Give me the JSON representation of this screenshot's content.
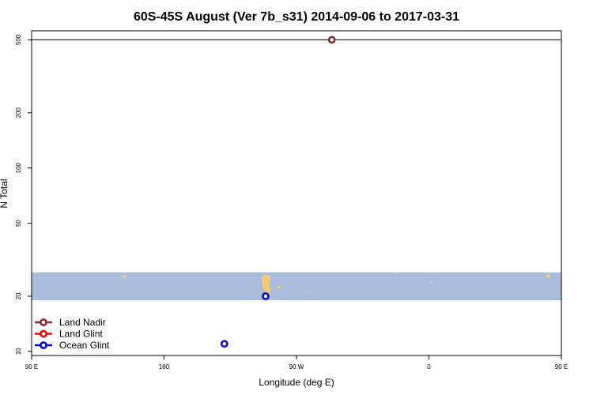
{
  "chart_data": {
    "type": "scatter",
    "title": "60S-45S August (Ver 7b_s31)   2014-09-06 to 2017-03-31",
    "xlabel": "Longitude (deg E)",
    "ylabel": "N Total",
    "y_scale": "log",
    "xlim": [
      90,
      450
    ],
    "ylim": [
      9.5,
      560
    ],
    "x_ticks": [
      {
        "value": 90,
        "label": "90 E"
      },
      {
        "value": 180,
        "label": "180"
      },
      {
        "value": 270,
        "label": "90 W"
      },
      {
        "value": 360,
        "label": "0"
      },
      {
        "value": 450,
        "label": "90 E"
      },
      {
        "value": 540,
        "label": "180"
      }
    ],
    "y_ticks": [
      {
        "value": 10,
        "label": "10"
      },
      {
        "value": 20,
        "label": "20"
      },
      {
        "value": 50,
        "label": "50"
      },
      {
        "value": 100,
        "label": "100"
      },
      {
        "value": 200,
        "label": "200"
      },
      {
        "value": 500,
        "label": "500"
      }
    ],
    "reference_lines": [
      {
        "y": 500
      }
    ],
    "latitude_band": {
      "y_from": 19,
      "y_to": 27,
      "color": "#a9bddd",
      "land_color": "#f5cd6e"
    },
    "series": [
      {
        "name": "Land Nadir",
        "color": "#8b2a2a",
        "points": [
          {
            "x": 294,
            "y": 500
          }
        ]
      },
      {
        "name": "Land Glint",
        "color": "#ff0000",
        "points": []
      },
      {
        "name": "Ocean Glint",
        "color": "#0000ee",
        "points": [
          {
            "x": 249,
            "y": 20
          },
          {
            "x": 221,
            "y": 11
          }
        ]
      }
    ],
    "legend_position": "bottom-left",
    "grid": false
  }
}
